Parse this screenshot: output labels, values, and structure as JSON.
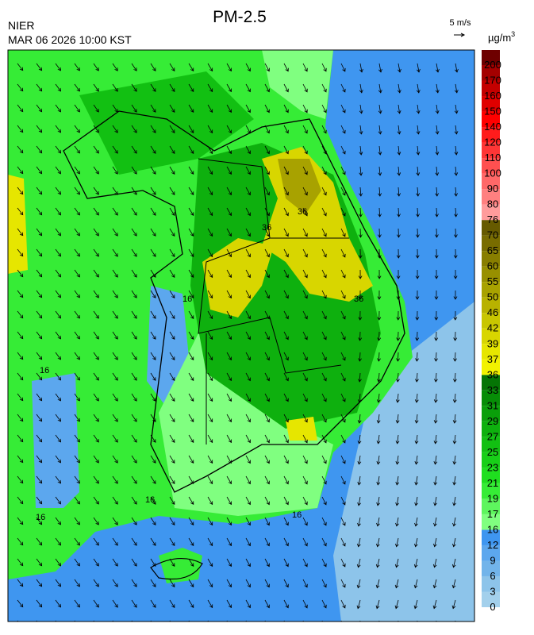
{
  "header": {
    "title": "PM-2.5",
    "agency": "NIER",
    "datetime": "MAR 06 2026 10:00 KST",
    "wind_scale": "5 m/s"
  },
  "legend": {
    "unit": "µg/m",
    "unit_sup": "3",
    "ticks": [
      0,
      3,
      6,
      9,
      12,
      16,
      17,
      19,
      21,
      23,
      25,
      27,
      29,
      31,
      33,
      36,
      37,
      39,
      42,
      46,
      50,
      55,
      60,
      65,
      70,
      76,
      80,
      90,
      100,
      110,
      120,
      140,
      150,
      160,
      170,
      200
    ],
    "colors": [
      "#a3d0ec",
      "#8dc4ea",
      "#72b4ea",
      "#5ca7ee",
      "#3f96f0",
      "#80ff80",
      "#5ef55e",
      "#36ec36",
      "#1fdf1f",
      "#18cf18",
      "#12c012",
      "#0eb00e",
      "#0a9f0a",
      "#078d07",
      "#057505",
      "#f2f200",
      "#e6e600",
      "#d8d600",
      "#c8c600",
      "#b8b200",
      "#a8a200",
      "#989000",
      "#887e00",
      "#786c00",
      "#665a00",
      "#ff9c9c",
      "#ff8080",
      "#ff6868",
      "#ff5050",
      "#ff3636",
      "#ff1c1c",
      "#ff0000",
      "#e00000",
      "#c40000",
      "#a40000",
      "#6e0000"
    ]
  },
  "map": {
    "contour_labels": [
      "16",
      "16",
      "16",
      "16",
      "16",
      "36",
      "36",
      "36"
    ]
  }
}
